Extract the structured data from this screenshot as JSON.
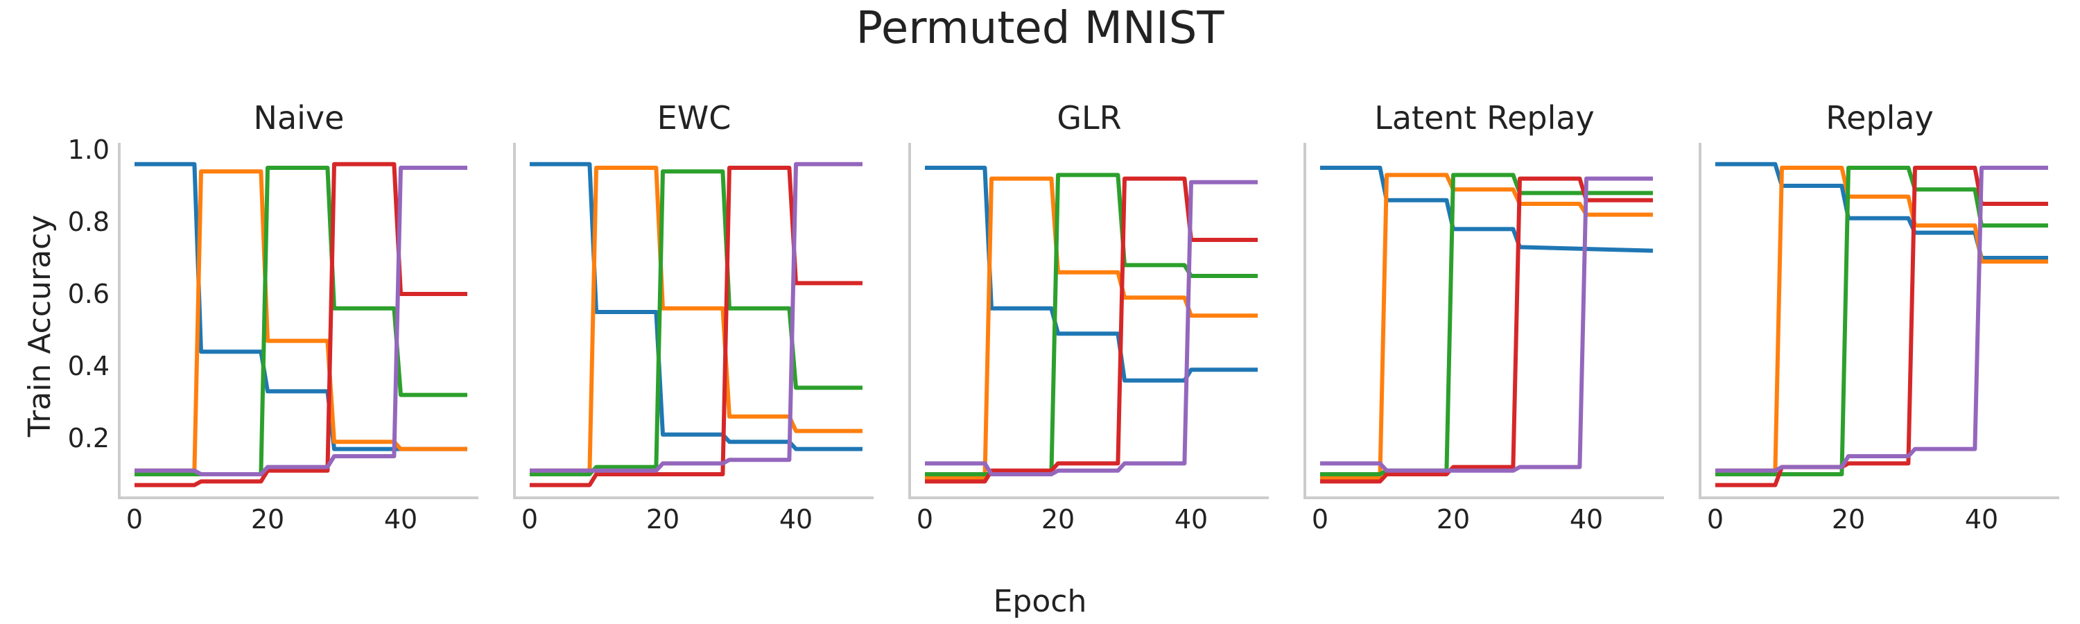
{
  "figure": {
    "title": "Permuted MNIST",
    "xlabel": "Epoch",
    "ylabel": "Train Accuracy"
  },
  "colors": {
    "task1": "#1f77b4",
    "task2": "#ff7f0e",
    "task3": "#2ca02c",
    "task4": "#d62728",
    "task5": "#9467bd",
    "spine": "#cccccc"
  },
  "chart_data": [
    {
      "type": "line",
      "title": "Naive",
      "xlim": [
        0,
        50
      ],
      "ylim": [
        0.05,
        1.0
      ],
      "xticks": [
        "0",
        "20",
        "40"
      ],
      "yticks": [
        "0.2",
        "0.4",
        "0.6",
        "0.8",
        "1.0"
      ],
      "grid": false,
      "series": [
        {
          "color": "#1f77b4",
          "points": [
            [
              0,
              0.96
            ],
            [
              9,
              0.96
            ],
            [
              10,
              0.44
            ],
            [
              19,
              0.44
            ],
            [
              20,
              0.33
            ],
            [
              29,
              0.33
            ],
            [
              30,
              0.17
            ],
            [
              50,
              0.17
            ]
          ]
        },
        {
          "color": "#ff7f0e",
          "points": [
            [
              0,
              0.11
            ],
            [
              9,
              0.11
            ],
            [
              10,
              0.94
            ],
            [
              19,
              0.94
            ],
            [
              20,
              0.47
            ],
            [
              29,
              0.47
            ],
            [
              30,
              0.19
            ],
            [
              39,
              0.19
            ],
            [
              40,
              0.17
            ],
            [
              50,
              0.17
            ]
          ]
        },
        {
          "color": "#2ca02c",
          "points": [
            [
              0,
              0.1
            ],
            [
              9,
              0.1
            ],
            [
              10,
              0.1
            ],
            [
              19,
              0.1
            ],
            [
              20,
              0.95
            ],
            [
              29,
              0.95
            ],
            [
              30,
              0.56
            ],
            [
              39,
              0.56
            ],
            [
              40,
              0.32
            ],
            [
              50,
              0.32
            ]
          ]
        },
        {
          "color": "#d62728",
          "points": [
            [
              0,
              0.07
            ],
            [
              9,
              0.07
            ],
            [
              10,
              0.08
            ],
            [
              19,
              0.08
            ],
            [
              20,
              0.11
            ],
            [
              29,
              0.11
            ],
            [
              30,
              0.96
            ],
            [
              39,
              0.96
            ],
            [
              40,
              0.6
            ],
            [
              50,
              0.6
            ]
          ]
        },
        {
          "color": "#9467bd",
          "points": [
            [
              0,
              0.11
            ],
            [
              9,
              0.11
            ],
            [
              10,
              0.1
            ],
            [
              19,
              0.1
            ],
            [
              20,
              0.12
            ],
            [
              29,
              0.12
            ],
            [
              30,
              0.15
            ],
            [
              39,
              0.15
            ],
            [
              40,
              0.95
            ],
            [
              50,
              0.95
            ]
          ]
        }
      ]
    },
    {
      "type": "line",
      "title": "EWC",
      "xlim": [
        0,
        50
      ],
      "ylim": [
        0.05,
        1.0
      ],
      "xticks": [
        "0",
        "20",
        "40"
      ],
      "yticks": [],
      "grid": false,
      "series": [
        {
          "color": "#1f77b4",
          "points": [
            [
              0,
              0.96
            ],
            [
              9,
              0.96
            ],
            [
              10,
              0.55
            ],
            [
              19,
              0.55
            ],
            [
              20,
              0.21
            ],
            [
              29,
              0.21
            ],
            [
              30,
              0.19
            ],
            [
              39,
              0.19
            ],
            [
              40,
              0.17
            ],
            [
              50,
              0.17
            ]
          ]
        },
        {
          "color": "#ff7f0e",
          "points": [
            [
              0,
              0.11
            ],
            [
              9,
              0.11
            ],
            [
              10,
              0.95
            ],
            [
              19,
              0.95
            ],
            [
              20,
              0.56
            ],
            [
              29,
              0.56
            ],
            [
              30,
              0.26
            ],
            [
              39,
              0.26
            ],
            [
              40,
              0.22
            ],
            [
              50,
              0.22
            ]
          ]
        },
        {
          "color": "#2ca02c",
          "points": [
            [
              0,
              0.1
            ],
            [
              9,
              0.1
            ],
            [
              10,
              0.12
            ],
            [
              19,
              0.12
            ],
            [
              20,
              0.94
            ],
            [
              29,
              0.94
            ],
            [
              30,
              0.56
            ],
            [
              39,
              0.56
            ],
            [
              40,
              0.34
            ],
            [
              50,
              0.34
            ]
          ]
        },
        {
          "color": "#d62728",
          "points": [
            [
              0,
              0.07
            ],
            [
              9,
              0.07
            ],
            [
              10,
              0.1
            ],
            [
              19,
              0.1
            ],
            [
              20,
              0.1
            ],
            [
              29,
              0.1
            ],
            [
              30,
              0.95
            ],
            [
              39,
              0.95
            ],
            [
              40,
              0.63
            ],
            [
              50,
              0.63
            ]
          ]
        },
        {
          "color": "#9467bd",
          "points": [
            [
              0,
              0.11
            ],
            [
              9,
              0.11
            ],
            [
              10,
              0.11
            ],
            [
              19,
              0.11
            ],
            [
              20,
              0.13
            ],
            [
              29,
              0.13
            ],
            [
              30,
              0.14
            ],
            [
              39,
              0.14
            ],
            [
              40,
              0.96
            ],
            [
              50,
              0.96
            ]
          ]
        }
      ]
    },
    {
      "type": "line",
      "title": "GLR",
      "xlim": [
        0,
        50
      ],
      "ylim": [
        0.05,
        1.0
      ],
      "xticks": [
        "0",
        "20",
        "40"
      ],
      "yticks": [],
      "grid": false,
      "series": [
        {
          "color": "#1f77b4",
          "points": [
            [
              0,
              0.95
            ],
            [
              9,
              0.95
            ],
            [
              10,
              0.56
            ],
            [
              19,
              0.56
            ],
            [
              20,
              0.49
            ],
            [
              29,
              0.49
            ],
            [
              30,
              0.36
            ],
            [
              39,
              0.36
            ],
            [
              40,
              0.39
            ],
            [
              50,
              0.39
            ]
          ]
        },
        {
          "color": "#ff7f0e",
          "points": [
            [
              0,
              0.09
            ],
            [
              9,
              0.09
            ],
            [
              10,
              0.92
            ],
            [
              19,
              0.92
            ],
            [
              20,
              0.66
            ],
            [
              29,
              0.66
            ],
            [
              30,
              0.59
            ],
            [
              39,
              0.59
            ],
            [
              40,
              0.54
            ],
            [
              50,
              0.54
            ]
          ]
        },
        {
          "color": "#2ca02c",
          "points": [
            [
              0,
              0.1
            ],
            [
              9,
              0.1
            ],
            [
              10,
              0.1
            ],
            [
              19,
              0.1
            ],
            [
              20,
              0.93
            ],
            [
              29,
              0.93
            ],
            [
              30,
              0.68
            ],
            [
              39,
              0.68
            ],
            [
              40,
              0.65
            ],
            [
              50,
              0.65
            ]
          ]
        },
        {
          "color": "#d62728",
          "points": [
            [
              0,
              0.08
            ],
            [
              9,
              0.08
            ],
            [
              10,
              0.11
            ],
            [
              19,
              0.11
            ],
            [
              20,
              0.13
            ],
            [
              29,
              0.13
            ],
            [
              30,
              0.92
            ],
            [
              39,
              0.92
            ],
            [
              40,
              0.75
            ],
            [
              50,
              0.75
            ]
          ]
        },
        {
          "color": "#9467bd",
          "points": [
            [
              0,
              0.13
            ],
            [
              9,
              0.13
            ],
            [
              10,
              0.1
            ],
            [
              19,
              0.1
            ],
            [
              20,
              0.11
            ],
            [
              29,
              0.11
            ],
            [
              30,
              0.13
            ],
            [
              39,
              0.13
            ],
            [
              40,
              0.91
            ],
            [
              50,
              0.91
            ]
          ]
        }
      ]
    },
    {
      "type": "line",
      "title": "Latent Replay",
      "xlim": [
        0,
        50
      ],
      "ylim": [
        0.05,
        1.0
      ],
      "xticks": [
        "0",
        "20",
        "40"
      ],
      "yticks": [],
      "grid": false,
      "series": [
        {
          "color": "#1f77b4",
          "points": [
            [
              0,
              0.95
            ],
            [
              9,
              0.95
            ],
            [
              10,
              0.86
            ],
            [
              19,
              0.86
            ],
            [
              20,
              0.78
            ],
            [
              29,
              0.78
            ],
            [
              30,
              0.73
            ],
            [
              50,
              0.72
            ]
          ]
        },
        {
          "color": "#ff7f0e",
          "points": [
            [
              0,
              0.09
            ],
            [
              9,
              0.09
            ],
            [
              10,
              0.93
            ],
            [
              19,
              0.93
            ],
            [
              20,
              0.89
            ],
            [
              29,
              0.89
            ],
            [
              30,
              0.85
            ],
            [
              39,
              0.85
            ],
            [
              40,
              0.82
            ],
            [
              50,
              0.82
            ]
          ]
        },
        {
          "color": "#2ca02c",
          "points": [
            [
              0,
              0.1
            ],
            [
              9,
              0.1
            ],
            [
              10,
              0.11
            ],
            [
              19,
              0.11
            ],
            [
              20,
              0.93
            ],
            [
              29,
              0.93
            ],
            [
              30,
              0.88
            ],
            [
              50,
              0.88
            ]
          ]
        },
        {
          "color": "#d62728",
          "points": [
            [
              0,
              0.08
            ],
            [
              9,
              0.08
            ],
            [
              10,
              0.1
            ],
            [
              19,
              0.1
            ],
            [
              20,
              0.12
            ],
            [
              29,
              0.12
            ],
            [
              30,
              0.92
            ],
            [
              39,
              0.92
            ],
            [
              40,
              0.86
            ],
            [
              50,
              0.86
            ]
          ]
        },
        {
          "color": "#9467bd",
          "points": [
            [
              0,
              0.13
            ],
            [
              9,
              0.13
            ],
            [
              10,
              0.11
            ],
            [
              19,
              0.11
            ],
            [
              20,
              0.11
            ],
            [
              29,
              0.11
            ],
            [
              30,
              0.12
            ],
            [
              39,
              0.12
            ],
            [
              40,
              0.92
            ],
            [
              50,
              0.92
            ]
          ]
        }
      ]
    },
    {
      "type": "line",
      "title": "Replay",
      "xlim": [
        0,
        50
      ],
      "ylim": [
        0.05,
        1.0
      ],
      "xticks": [
        "0",
        "20",
        "40"
      ],
      "yticks": [],
      "grid": false,
      "series": [
        {
          "color": "#1f77b4",
          "points": [
            [
              0,
              0.96
            ],
            [
              9,
              0.96
            ],
            [
              10,
              0.9
            ],
            [
              19,
              0.9
            ],
            [
              20,
              0.81
            ],
            [
              29,
              0.81
            ],
            [
              30,
              0.77
            ],
            [
              39,
              0.77
            ],
            [
              40,
              0.7
            ],
            [
              50,
              0.7
            ]
          ]
        },
        {
          "color": "#ff7f0e",
          "points": [
            [
              0,
              0.11
            ],
            [
              9,
              0.11
            ],
            [
              10,
              0.95
            ],
            [
              19,
              0.95
            ],
            [
              20,
              0.87
            ],
            [
              29,
              0.87
            ],
            [
              30,
              0.79
            ],
            [
              39,
              0.79
            ],
            [
              40,
              0.69
            ],
            [
              50,
              0.69
            ]
          ]
        },
        {
          "color": "#2ca02c",
          "points": [
            [
              0,
              0.1
            ],
            [
              9,
              0.1
            ],
            [
              10,
              0.1
            ],
            [
              19,
              0.1
            ],
            [
              20,
              0.95
            ],
            [
              29,
              0.95
            ],
            [
              30,
              0.89
            ],
            [
              39,
              0.89
            ],
            [
              40,
              0.79
            ],
            [
              50,
              0.79
            ]
          ]
        },
        {
          "color": "#d62728",
          "points": [
            [
              0,
              0.07
            ],
            [
              9,
              0.07
            ],
            [
              10,
              0.12
            ],
            [
              19,
              0.12
            ],
            [
              20,
              0.13
            ],
            [
              29,
              0.13
            ],
            [
              30,
              0.95
            ],
            [
              39,
              0.95
            ],
            [
              40,
              0.85
            ],
            [
              50,
              0.85
            ]
          ]
        },
        {
          "color": "#9467bd",
          "points": [
            [
              0,
              0.11
            ],
            [
              9,
              0.11
            ],
            [
              10,
              0.12
            ],
            [
              19,
              0.12
            ],
            [
              20,
              0.15
            ],
            [
              29,
              0.15
            ],
            [
              30,
              0.17
            ],
            [
              39,
              0.17
            ],
            [
              40,
              0.95
            ],
            [
              50,
              0.95
            ]
          ]
        }
      ]
    }
  ]
}
